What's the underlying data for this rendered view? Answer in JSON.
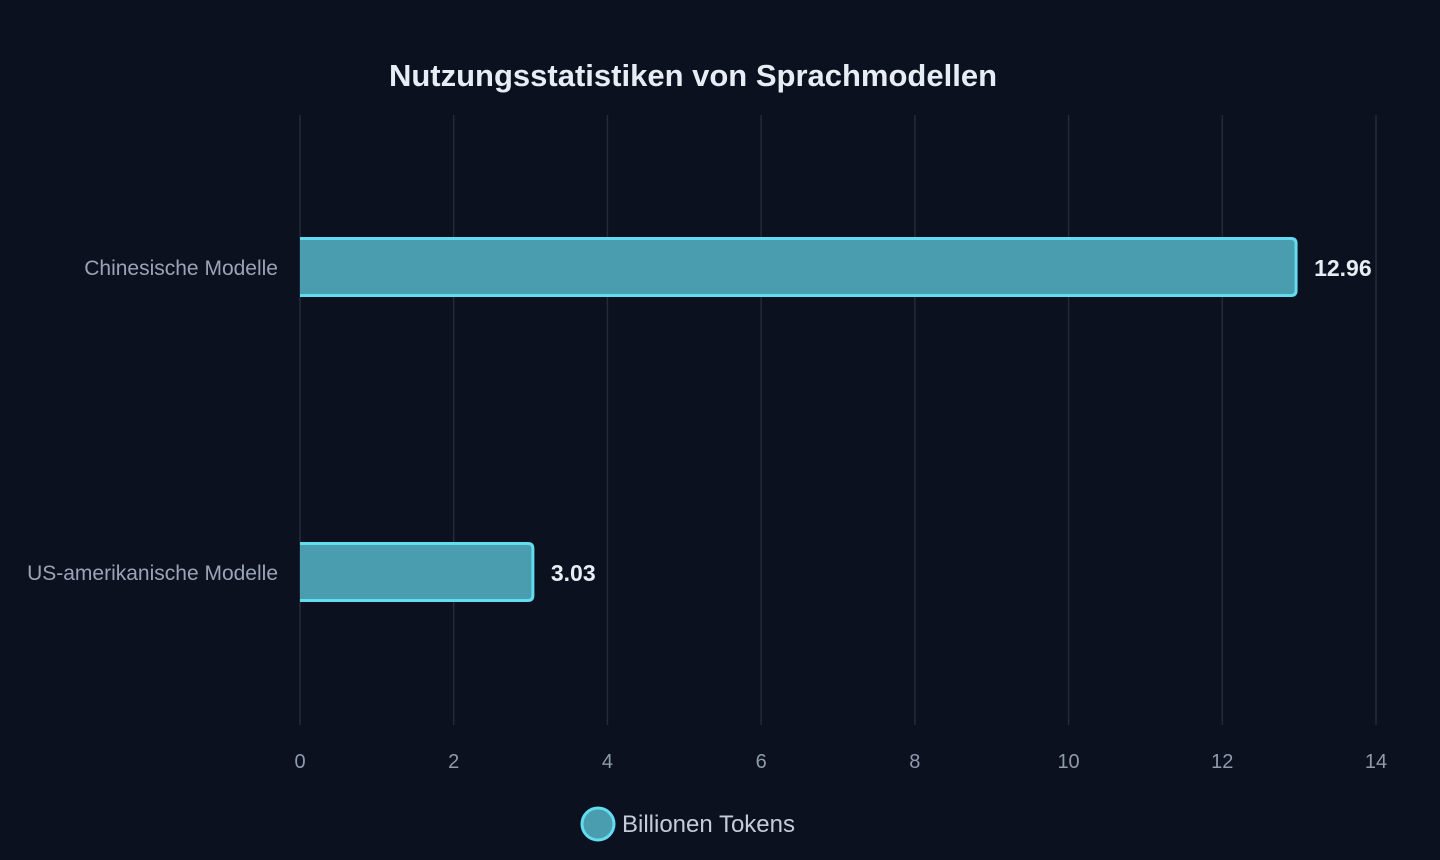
{
  "chart_data": {
    "type": "bar",
    "orientation": "horizontal",
    "title": "Nutzungsstatistiken von Sprachmodellen",
    "categories": [
      "Chinesische Modelle",
      "US-amerikanische Modelle"
    ],
    "series": [
      {
        "name": "Billionen Tokens",
        "values": [
          12.96,
          3.03
        ]
      }
    ],
    "data_labels": [
      "12.96",
      "3.03"
    ],
    "xlim": [
      0,
      14
    ],
    "xticks": [
      0,
      2,
      4,
      6,
      8,
      10,
      12,
      14
    ],
    "xlabel": "",
    "ylabel": "",
    "grid": true,
    "legend": "bottom"
  },
  "colors": {
    "background": "#0c111f",
    "bar_fill": "#4a9daf",
    "bar_stroke": "#62dcef",
    "grid": "#232a38"
  }
}
